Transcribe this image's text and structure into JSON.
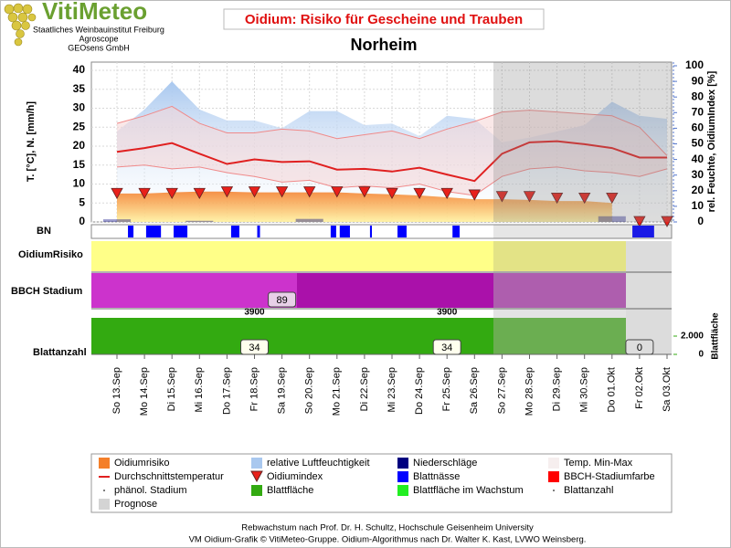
{
  "header": {
    "logo": "VitiMeteo",
    "org": [
      "Staatliches Weinbauinstitut Freiburg",
      "Agroscope",
      "GEOsens GmbH"
    ]
  },
  "chart_data": {
    "type": "line",
    "title": "Oidium: Risiko für Gescheine und Trauben",
    "subtitle": "Norheim",
    "ylabel": "T. [°C], N. [mm/h]",
    "y2label": "rel. Feuchte, OidiumIndex [%]",
    "categories": [
      "So 13.Sep",
      "Mo 14.Sep",
      "Di 15.Sep",
      "Mi 16.Sep",
      "Do 17.Sep",
      "Fr 18.Sep",
      "Sa 19.Sep",
      "So 20.Sep",
      "Mo 21.Sep",
      "Di 22.Sep",
      "Mi 23.Sep",
      "Do 24.Sep",
      "Fr 25.Sep",
      "Sa 26.Sep",
      "So 27.Sep",
      "Mo 28.Sep",
      "Di 29.Sep",
      "Mi 30.Sep",
      "Do 01.Okt",
      "Fr 02.Okt",
      "Sa 03.Okt"
    ],
    "ylim": [
      0,
      40
    ],
    "yticks": [
      0,
      5,
      10,
      15,
      20,
      25,
      30,
      35,
      40
    ],
    "y2lim": [
      0,
      100
    ],
    "y2ticks": [
      0,
      10,
      20,
      30,
      40,
      50,
      60,
      70,
      80,
      90,
      100
    ],
    "grid": true,
    "series": {
      "humidity": {
        "color": "#a9c8ef",
        "axis": "y2",
        "values": [
          58,
          72,
          90,
          72,
          65,
          65,
          60,
          71,
          71,
          62,
          63,
          55,
          68,
          66,
          51,
          54,
          58,
          62,
          77,
          68,
          66
        ]
      },
      "temp_range": {
        "color": "#f08a8a",
        "values": [
          26,
          28,
          30.5,
          26,
          23.5,
          23.5,
          24.5,
          24,
          22,
          23,
          24,
          22,
          24.5,
          26.5,
          29,
          29.5,
          29,
          28.5,
          28,
          25,
          17.5
        ],
        "low": [
          14.5,
          15,
          14,
          14.5,
          13,
          12,
          10.5,
          11,
          9,
          9.5,
          9,
          10,
          8,
          7,
          12,
          14,
          14.5,
          13.5,
          13,
          12,
          14
        ]
      },
      "oidium_risk": {
        "color": "#f47f2a",
        "values": [
          7.5,
          7.5,
          7.8,
          8,
          8,
          7.8,
          7.8,
          7.8,
          7.8,
          7.5,
          7.3,
          7,
          6.5,
          6,
          6,
          5.8,
          5.5,
          5.5,
          5,
          null,
          null
        ]
      },
      "precipitation": {
        "color": "#00007f",
        "values": [
          0.7,
          0,
          0,
          0.3,
          0,
          0,
          0,
          0.8,
          0,
          0,
          0,
          0,
          0,
          0,
          0,
          0,
          0,
          0,
          1.5,
          0,
          0
        ]
      },
      "temp_avg": {
        "color": "#e02020",
        "values": [
          18.5,
          19.5,
          20.8,
          18,
          15.3,
          16.5,
          15.8,
          16,
          13.8,
          14,
          13.3,
          14.3,
          12.5,
          10.8,
          18,
          21,
          21.3,
          20.5,
          19.5,
          17,
          17
        ]
      },
      "oidium_index": {
        "color": "#e8201a",
        "axis": "y2",
        "values": [
          18,
          18,
          18,
          18,
          19,
          19,
          19,
          19,
          19,
          19,
          18,
          18,
          18,
          17,
          16,
          16,
          15,
          15,
          15,
          0,
          0
        ]
      },
      "leaf_wetness": {
        "color": "#0000ff",
        "intervals": [
          [
            0.4,
            0.6
          ],
          [
            1.06,
            1.6
          ],
          [
            2.06,
            2.56
          ],
          [
            4.15,
            4.45
          ],
          [
            5.1,
            5.2
          ],
          [
            7.77,
            7.97
          ],
          [
            8.1,
            8.47
          ],
          [
            9.2,
            9.27
          ],
          [
            10.2,
            10.53
          ],
          [
            12.2,
            12.46
          ],
          [
            18.74,
            19.53
          ]
        ]
      }
    },
    "rows": {
      "bn": "BN",
      "risk": "OidiumRisiko",
      "bbch": "BBCH Stadium",
      "leaves": "Blattanzahl"
    },
    "bbch": {
      "at": [
        "Sa 19.Sep"
      ],
      "values": [
        89
      ]
    },
    "leaf_area": {
      "label": "Blattfläche",
      "at": [
        "Fr 18.Sep",
        "Fr 25.Sep"
      ],
      "values": [
        3900,
        3900
      ],
      "lim": [
        0,
        4000
      ],
      "ticks": [
        0,
        {
          "value": 2000,
          "label": "2.000"
        }
      ]
    },
    "leaf_count": {
      "at": [
        "Fr 18.Sep",
        "Fr 25.Sep",
        "Fr 02.Okt"
      ],
      "values": [
        34,
        34,
        0
      ]
    },
    "legend": [
      {
        "name": "Oidiumrisiko",
        "color": "#f47f2a",
        "marker": "box"
      },
      {
        "name": "relative Luftfeuchtigkeit",
        "color": "#a9c8ef",
        "marker": "box"
      },
      {
        "name": "Niederschläge",
        "color": "#00007f",
        "marker": "box"
      },
      {
        "name": "Temp. Min-Max",
        "color": "#f6eeee",
        "marker": "box"
      },
      {
        "name": "Durchschnittstemperatur",
        "color": "#e02020",
        "marker": "line"
      },
      {
        "name": "Oidiumindex",
        "color": "#e8201a",
        "marker": "triangle"
      },
      {
        "name": "Blattnässe",
        "color": "#0000ff",
        "marker": "box"
      },
      {
        "name": "BBCH-Stadiumfarbe",
        "color": "#ff0000",
        "marker": "box"
      },
      {
        "name": "phänol. Stadium",
        "color": "#555555",
        "marker": "dot"
      },
      {
        "name": "Blattfläche",
        "color": "#33aa11",
        "marker": "box"
      },
      {
        "name": "Blattfläche im Wachstum",
        "color": "#22ee22",
        "marker": "box"
      },
      {
        "name": "Blattanzahl",
        "color": "#555555",
        "marker": "dot"
      },
      {
        "name": "Prognose",
        "color": "#d4d4d4",
        "marker": "box"
      }
    ]
  },
  "footer": [
    "Rebwachstum nach Prof. Dr. H. Schultz, Hochschule Geisenheim University",
    "VM Oidium-Grafik © VitiMeteo-Gruppe. Oidium-Algorithmus nach Dr. Walter K. Kast, LVWO Weinsberg."
  ]
}
